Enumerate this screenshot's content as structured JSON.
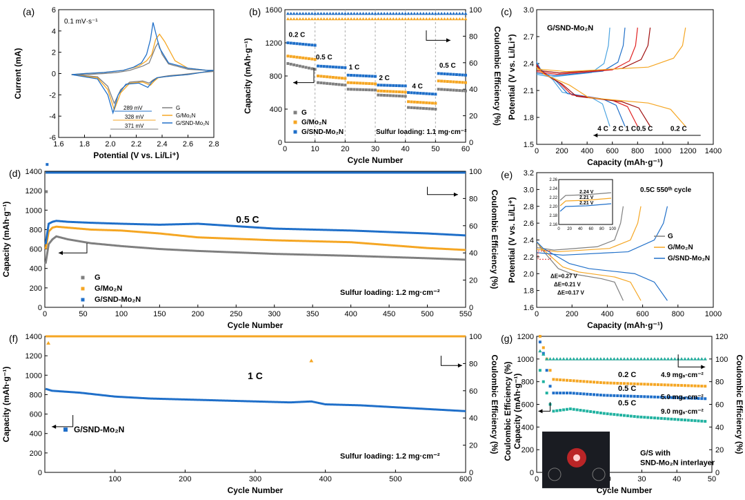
{
  "colors": {
    "G": "#7f7f7f",
    "Mo2N": "#f5a623",
    "SND": "#1f6fc9",
    "teal": "#20b2a0",
    "red": "#e02020",
    "darkred": "#a01010",
    "lightblue": "#4aa3e0"
  },
  "chart_data": [
    {
      "panel": "(a)",
      "type": "line",
      "xlabel": "Potential (V vs. Li/Li⁺)",
      "ylabel": "Current (mA)",
      "xlim": [
        1.6,
        2.8
      ],
      "ylim": [
        -6,
        6
      ],
      "xticks": [
        "1.6",
        "1.8",
        "2.0",
        "2.2",
        "2.4",
        "2.6",
        "2.8"
      ],
      "yticks": [
        "-6",
        "-4",
        "-2",
        "0",
        "2",
        "4",
        "6"
      ],
      "annotation": "0.1 mV·s⁻¹",
      "gaps": [
        "289 mV",
        "328 mV",
        "371 mV"
      ],
      "legend": [
        "G",
        "G/Mo₂N",
        "G/SND-Mo₂N"
      ],
      "series": [
        {
          "name": "G",
          "x": [
            1.7,
            1.9,
            1.98,
            2.03,
            2.08,
            2.15,
            2.25,
            2.3,
            2.33,
            2.36,
            2.4,
            2.45,
            2.55,
            2.7,
            2.8,
            2.75,
            2.6,
            2.45,
            2.4,
            2.37,
            2.35,
            2.32,
            2.3,
            2.25,
            2.15,
            2.05,
            1.95,
            1.8,
            1.7
          ],
          "y": [
            -0.1,
            -0.3,
            -1.2,
            -2.8,
            -1.5,
            -0.8,
            -0.7,
            -0.9,
            -0.6,
            -0.4,
            -0.3,
            -0.2,
            -0.1,
            0.1,
            0.2,
            0.3,
            0.4,
            0.9,
            1.8,
            2.9,
            2.5,
            1.6,
            1.0,
            0.7,
            0.3,
            0.1,
            0.0,
            -0.1,
            -0.1
          ]
        },
        {
          "name": "G/Mo2N",
          "x": [
            1.7,
            1.9,
            1.98,
            2.03,
            2.08,
            2.15,
            2.25,
            2.31,
            2.34,
            2.37,
            2.42,
            2.5,
            2.6,
            2.7,
            2.8,
            2.75,
            2.6,
            2.5,
            2.42,
            2.38,
            2.35,
            2.32,
            2.28,
            2.22,
            2.1,
            1.95,
            1.8,
            1.7
          ],
          "y": [
            -0.1,
            -0.4,
            -1.5,
            -3.4,
            -1.8,
            -0.9,
            -0.8,
            -1.1,
            -0.7,
            -0.4,
            -0.3,
            -0.2,
            -0.1,
            0.1,
            0.3,
            0.3,
            0.5,
            1.2,
            3.0,
            3.7,
            3.2,
            1.8,
            1.2,
            0.7,
            0.3,
            0.1,
            0.0,
            -0.1
          ]
        },
        {
          "name": "G/SND-Mo2N",
          "x": [
            1.7,
            1.9,
            1.98,
            2.02,
            2.06,
            2.12,
            2.22,
            2.29,
            2.32,
            2.36,
            2.42,
            2.5,
            2.6,
            2.7,
            2.8,
            2.75,
            2.6,
            2.45,
            2.38,
            2.33,
            2.31,
            2.28,
            2.24,
            2.18,
            2.1,
            1.95,
            1.8,
            1.7
          ],
          "y": [
            -0.1,
            -0.5,
            -2.0,
            -3.7,
            -2.0,
            -1.0,
            -0.9,
            -1.3,
            -0.8,
            -0.4,
            -0.3,
            -0.2,
            -0.1,
            0.1,
            0.3,
            0.3,
            0.5,
            1.0,
            2.4,
            4.8,
            3.2,
            1.8,
            1.0,
            0.6,
            0.3,
            0.1,
            0.0,
            -0.1
          ]
        }
      ]
    },
    {
      "panel": "(b)",
      "type": "scatter",
      "xlabel": "Cycle Number",
      "ylabel": "Capacity (mAh·g⁻¹)",
      "y2label": "Coulombic Efficiency (%)",
      "xlim": [
        0,
        60
      ],
      "ylim": [
        0,
        1600
      ],
      "y2lim": [
        0,
        100
      ],
      "xticks": [
        "0",
        "10",
        "20",
        "30",
        "40",
        "50",
        "60"
      ],
      "yticks": [
        "0",
        "400",
        "800",
        "1200",
        "1600"
      ],
      "y2ticks": [
        "0",
        "20",
        "40",
        "60",
        "80",
        "100"
      ],
      "rates": [
        "0.2 C",
        "0.5 C",
        "1 C",
        "2 C",
        "4 C",
        "0.5 C"
      ],
      "legend": [
        "G",
        "G/Mo₂N",
        "G/SND-Mo₂N"
      ],
      "loading": "Sulfur loading: 1.1 mg·cm⁻²",
      "steps": [
        {
          "from": 1,
          "to": 10,
          "G": [
            950,
            880
          ],
          "Mo2N": [
            1040,
            1000
          ],
          "SND": [
            1200,
            1170
          ]
        },
        {
          "from": 11,
          "to": 20,
          "G": [
            720,
            690
          ],
          "Mo2N": [
            800,
            770
          ],
          "SND": [
            920,
            900
          ]
        },
        {
          "from": 21,
          "to": 30,
          "G": [
            640,
            630
          ],
          "Mo2N": [
            720,
            705
          ],
          "SND": [
            810,
            795
          ]
        },
        {
          "from": 31,
          "to": 40,
          "G": [
            570,
            555
          ],
          "Mo2N": [
            620,
            605
          ],
          "SND": [
            690,
            680
          ]
        },
        {
          "from": 41,
          "to": 50,
          "G": [
            420,
            400
          ],
          "Mo2N": [
            490,
            470
          ],
          "SND": [
            600,
            580
          ]
        },
        {
          "from": 51,
          "to": 60,
          "G": [
            640,
            620
          ],
          "Mo2N": [
            740,
            720
          ],
          "SND": [
            830,
            810
          ]
        }
      ],
      "ce": {
        "G": 97,
        "Mo2N": 95,
        "SND": 97
      }
    },
    {
      "panel": "(c)",
      "type": "line",
      "xlabel": "Capacity (mAh·g⁻¹)",
      "ylabel": "Potential (V vs. Li/Li⁺)",
      "xlim": [
        0,
        1400
      ],
      "ylim": [
        1.5,
        3.0
      ],
      "xticks": [
        "0",
        "200",
        "400",
        "600",
        "800",
        "1000",
        "1200",
        "1400"
      ],
      "yticks": [
        "1.5",
        "1.8",
        "2.1",
        "2.4",
        "2.7",
        "3.0"
      ],
      "label": "G/SND-Mo₂N",
      "rates": [
        "4 C",
        "2 C",
        "1 C",
        "0.5 C",
        "0.2 C"
      ],
      "capacities": [
        {
          "rate": "4 C",
          "cap": 580,
          "color": "lightblue"
        },
        {
          "rate": "2 C",
          "cap": 700,
          "color": "SND"
        },
        {
          "rate": "1 C",
          "cap": 800,
          "color": "red"
        },
        {
          "rate": "0.5 C",
          "cap": 900,
          "color": "darkred"
        },
        {
          "rate": "0.2 C",
          "cap": 1180,
          "color": "Mo2N"
        }
      ]
    },
    {
      "panel": "(d)",
      "type": "scatter",
      "xlabel": "Cycle Number",
      "ylabel": "Capacity (mAh·g⁻¹)",
      "y2label": "Coulombic Efficiency (%)",
      "xlim": [
        0,
        550
      ],
      "ylim": [
        0,
        1400
      ],
      "y2lim": [
        0,
        100
      ],
      "xticks": [
        "0",
        "50",
        "100",
        "150",
        "200",
        "250",
        "300",
        "350",
        "400",
        "450",
        "500",
        "550"
      ],
      "yticks": [
        "0",
        "200",
        "400",
        "600",
        "800",
        "1000",
        "1200",
        "1400"
      ],
      "y2ticks": [
        "0",
        "20",
        "40",
        "60",
        "80",
        "100"
      ],
      "rate": "0.5 C",
      "legend": [
        "G",
        "G/Mo₂N",
        "G/SND-Mo₂N"
      ],
      "loading": "Sulfur loading: 1.2 mg·cm⁻²",
      "curves": {
        "G": {
          "x": [
            1,
            5,
            10,
            15,
            30,
            60,
            100,
            150,
            200,
            300,
            400,
            500,
            550
          ],
          "y": [
            450,
            650,
            700,
            730,
            700,
            660,
            630,
            600,
            580,
            550,
            530,
            505,
            490
          ]
        },
        "Mo2N": {
          "x": [
            1,
            5,
            10,
            15,
            30,
            60,
            100,
            150,
            200,
            300,
            400,
            500,
            550
          ],
          "y": [
            600,
            780,
            820,
            830,
            820,
            800,
            790,
            760,
            720,
            690,
            670,
            610,
            590
          ]
        },
        "SND": {
          "x": [
            1,
            5,
            10,
            15,
            30,
            60,
            100,
            150,
            200,
            300,
            400,
            500,
            550
          ],
          "y": [
            650,
            860,
            880,
            890,
            880,
            870,
            860,
            850,
            860,
            810,
            790,
            760,
            740
          ]
        }
      },
      "ce": {
        "G": 99,
        "Mo2N": 99,
        "SND": 99
      }
    },
    {
      "panel": "(e)",
      "type": "line",
      "xlabel": "Capacity (mAh·g⁻¹)",
      "ylabel": "Potential (V vs. Li/Li⁺)",
      "xlim": [
        0,
        1000
      ],
      "ylim": [
        1.6,
        3.2
      ],
      "xticks": [
        "0",
        "200",
        "400",
        "600",
        "800",
        "1000"
      ],
      "yticks": [
        "1.6",
        "1.8",
        "2.0",
        "2.2",
        "2.4",
        "2.6",
        "2.8",
        "3.0",
        "3.2"
      ],
      "label": "0.5C 550ᵗʰ cycle",
      "legend": [
        "G",
        "G/Mo₂N",
        "G/SND-Mo₂N"
      ],
      "dE": [
        "ΔE=0.27 V",
        "ΔE=0.21 V",
        "ΔE=0.17 V"
      ],
      "inset": {
        "xticks": [
          "0",
          "20",
          "40",
          "60",
          "80",
          "100"
        ],
        "yticks": [
          "2.16",
          "2.18",
          "2.20",
          "2.22",
          "2.24",
          "2.26"
        ],
        "labels": [
          "2.24 V",
          "2.21 V",
          "2.21 V"
        ]
      },
      "caps": {
        "G": 490,
        "Mo2N": 590,
        "SND": 740
      }
    },
    {
      "panel": "(f)",
      "type": "scatter",
      "xlabel": "Cycle Number",
      "ylabel": "Capacity (mAh·g⁻¹)",
      "y2label": "Coulombic Efficiency (%)",
      "xlim": [
        0,
        600
      ],
      "ylim": [
        0,
        1400
      ],
      "y2lim": [
        0,
        100
      ],
      "xticks": [
        "100",
        "200",
        "300",
        "400",
        "500",
        "600"
      ],
      "yticks": [
        "0",
        "200",
        "400",
        "600",
        "800",
        "1000",
        "1200",
        "1400"
      ],
      "y2ticks": [
        "0",
        "20",
        "40",
        "60",
        "80",
        "100"
      ],
      "rate": "1 C",
      "legend": [
        "G/SND-Mo₂N"
      ],
      "loading": "Sulfur loading: 1.2 mg·cm⁻²",
      "curve": {
        "x": [
          1,
          10,
          50,
          100,
          150,
          200,
          250,
          300,
          350,
          380,
          400,
          450,
          500,
          550,
          600
        ],
        "y": [
          860,
          840,
          820,
          780,
          760,
          750,
          740,
          730,
          720,
          730,
          700,
          690,
          670,
          650,
          630
        ]
      },
      "ce": 100
    },
    {
      "panel": "(g)",
      "type": "scatter",
      "xlabel": "Cycle Number",
      "ylabel": "Capacity (mAh·g⁻¹)",
      "y2label": "Coulombic Efficiency (%)",
      "xlim": [
        0,
        52
      ],
      "ylim": [
        0,
        1200
      ],
      "y2lim": [
        0,
        120
      ],
      "xticks": [
        "0",
        "10",
        "20",
        "30",
        "40",
        "50"
      ],
      "yticks": [
        "0",
        "200",
        "400",
        "600",
        "800",
        "1000",
        "1200"
      ],
      "y2ticks": [
        "0",
        "20",
        "40",
        "60",
        "80",
        "100",
        "120"
      ],
      "labels": [
        {
          "rate": "0.2 C",
          "loading": "4.9 mgₛ·cm⁻²",
          "color": "Mo2N"
        },
        {
          "rate": "0.5 C",
          "loading": "5.0 mgₛ·cm⁻²",
          "color": "SND"
        },
        {
          "rate": "0.5 C",
          "loading": "9.0 mgₛ·cm⁻²",
          "color": "teal"
        }
      ],
      "photo_caption": [
        "G/S with",
        "SND-Mo₂N interlayer"
      ],
      "curves": {
        "Mo2N": {
          "x": [
            1,
            2,
            3,
            4,
            5,
            10,
            20,
            30,
            40,
            50
          ],
          "y": [
            1200,
            1100,
            1000,
            900,
            820,
            810,
            790,
            780,
            770,
            760
          ]
        },
        "SND": {
          "x": [
            1,
            2,
            3,
            4,
            5,
            10,
            20,
            30,
            40,
            50
          ],
          "y": [
            1150,
            1050,
            900,
            760,
            700,
            700,
            680,
            670,
            660,
            650
          ]
        },
        "teal": {
          "x": [
            1,
            2,
            3,
            4,
            5,
            10,
            20,
            30,
            40,
            50
          ],
          "y": [
            900,
            800,
            700,
            600,
            540,
            560,
            520,
            490,
            470,
            450
          ]
        }
      }
    }
  ]
}
